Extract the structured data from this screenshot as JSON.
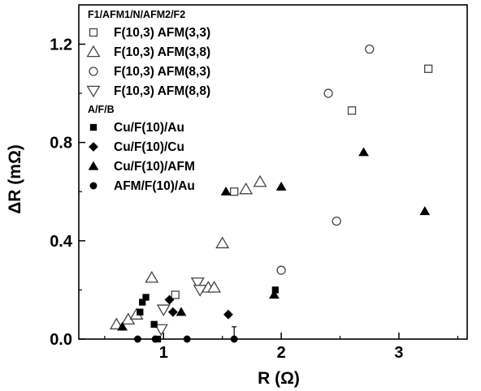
{
  "chart_data": {
    "type": "scatter",
    "xlabel": "R (Ω)",
    "ylabel": "ΔR (mΩ)",
    "xlim": [
      0.28,
      3.58
    ],
    "ylim": [
      0.0,
      1.36
    ],
    "x_ticks": [
      1,
      2,
      3
    ],
    "y_ticks": [
      0.0,
      0.4,
      0.8,
      1.2
    ],
    "x_tick_labels": [
      "1",
      "2",
      "3"
    ],
    "y_tick_labels": [
      "0.0",
      "0.4",
      "0.8",
      "1.2"
    ],
    "legend_position": "top-left",
    "legend_groups": [
      {
        "title": "F1/AFM1/N/AFM2/F2",
        "series": [
          0,
          1,
          2,
          3
        ]
      },
      {
        "title": "A/F/B",
        "series": [
          4,
          5,
          6,
          7
        ]
      }
    ],
    "series": [
      {
        "name": "F(10,3) AFM(3,3)",
        "marker": "square-open",
        "x": [
          1.1,
          1.6,
          2.6,
          3.25
        ],
        "y": [
          0.18,
          0.6,
          0.93,
          1.1
        ]
      },
      {
        "name": "F(10,3) AFM(3,8)",
        "marker": "triangle-up-open",
        "x": [
          0.6,
          0.7,
          0.77,
          0.9,
          1.38,
          1.43,
          1.5,
          1.7,
          1.82
        ],
        "y": [
          0.06,
          0.08,
          0.1,
          0.25,
          0.21,
          0.21,
          0.39,
          0.61,
          0.64
        ]
      },
      {
        "name": "F(10,3) AFM(8,3)",
        "marker": "circle-open",
        "x": [
          2.0,
          2.4,
          2.47,
          2.75
        ],
        "y": [
          0.28,
          1.0,
          0.48,
          1.18
        ]
      },
      {
        "name": "F(10,3) AFM(8,8)",
        "marker": "triangle-down-open",
        "x": [
          0.98,
          1.0,
          1.29,
          1.31
        ],
        "y": [
          0.04,
          0.12,
          0.23,
          0.2
        ]
      },
      {
        "name": "Cu/F(10)/Au",
        "marker": "square-filled",
        "x": [
          0.8,
          0.82,
          0.85,
          0.92,
          0.95,
          1.95
        ],
        "y": [
          0.11,
          0.15,
          0.17,
          0.06,
          0.0,
          0.2
        ]
      },
      {
        "name": "Cu/F(10)/Cu",
        "marker": "diamond-filled",
        "x": [
          1.05,
          1.08,
          1.55
        ],
        "y": [
          0.16,
          0.11,
          0.1
        ]
      },
      {
        "name": "Cu/F(10)/AFM",
        "marker": "triangle-up-filled",
        "x": [
          0.65,
          1.15,
          1.53,
          1.94,
          2.0,
          2.7,
          3.22
        ],
        "y": [
          0.05,
          0.11,
          0.6,
          0.18,
          0.62,
          0.76,
          0.52
        ]
      },
      {
        "name": "AFM/F(10)/Au",
        "marker": "circle-filled",
        "x": [
          0.78,
          0.93,
          1.2,
          1.6
        ],
        "y": [
          0.0,
          0.0,
          0.0,
          0.0
        ]
      }
    ]
  }
}
